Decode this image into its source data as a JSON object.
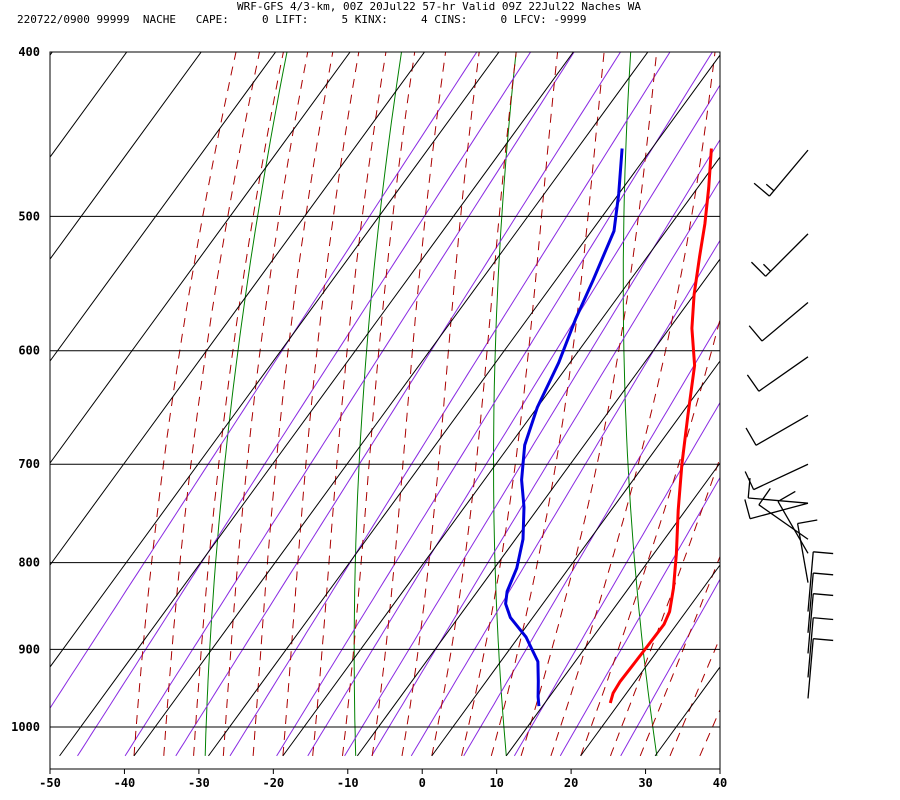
{
  "header": {
    "title": "WRF-GFS 4/3-km, 00Z 20Jul22 57-hr Valid 09Z 22Jul22 Naches WA",
    "stats": "220722/0900 99999  NACHE   CAPE:     0 LIFT:     5 KINX:     4 CINS:     0 LFCV: -9999"
  },
  "colors": {
    "temperature": "#ff0000",
    "dewpoint": "#0000dd",
    "isotherm": "#000000",
    "dry_adiabat": "#008000",
    "moist_adiabat": "#aa0000",
    "mixing_ratio": "#8a2be2",
    "wind_barb": "#000000"
  },
  "chart_data": {
    "type": "skew-t",
    "xlim": [
      -50,
      40
    ],
    "ylim": [
      1040,
      400
    ],
    "y_scale": "log",
    "x_ticks": [
      -50,
      -40,
      -30,
      -20,
      -10,
      0,
      10,
      20,
      30,
      40
    ],
    "y_ticks": [
      400,
      500,
      600,
      700,
      800,
      900,
      1000
    ],
    "grid": true,
    "series": [
      {
        "key": "temperature",
        "points": [
          [
            -22,
            456
          ],
          [
            -18.5,
            481
          ],
          [
            -15.5,
            505
          ],
          [
            -13,
            528
          ],
          [
            -10,
            556
          ],
          [
            -7,
            582
          ],
          [
            -3,
            612
          ],
          [
            1,
            655
          ],
          [
            5,
            700
          ],
          [
            9,
            745
          ],
          [
            13,
            790
          ],
          [
            16,
            828
          ],
          [
            17.8,
            855
          ],
          [
            18.3,
            870
          ],
          [
            18.2,
            900
          ],
          [
            18,
            940
          ],
          [
            18.2,
            955
          ],
          [
            18.8,
            968
          ]
        ]
      },
      {
        "key": "dewpoint",
        "points": [
          [
            -34,
            456
          ],
          [
            -30,
            485
          ],
          [
            -27,
            510
          ],
          [
            -25,
            545
          ],
          [
            -23.5,
            575
          ],
          [
            -21.5,
            610
          ],
          [
            -20,
            648
          ],
          [
            -18,
            682
          ],
          [
            -15,
            715
          ],
          [
            -12,
            742
          ],
          [
            -9,
            775
          ],
          [
            -7,
            806
          ],
          [
            -6,
            832
          ],
          [
            -5,
            846
          ],
          [
            -3,
            862
          ],
          [
            1,
            885
          ],
          [
            5,
            915
          ],
          [
            7,
            940
          ],
          [
            8.5,
            960
          ],
          [
            9.5,
            972
          ]
        ]
      }
    ],
    "wind_barbs": [
      {
        "p": 457,
        "speed_kt": 15,
        "dir_deg": 220
      },
      {
        "p": 512,
        "speed_kt": 15,
        "dir_deg": 225
      },
      {
        "p": 562,
        "speed_kt": 10,
        "dir_deg": 230
      },
      {
        "p": 605,
        "speed_kt": 10,
        "dir_deg": 235
      },
      {
        "p": 655,
        "speed_kt": 10,
        "dir_deg": 240
      },
      {
        "p": 700,
        "speed_kt": 10,
        "dir_deg": 245
      },
      {
        "p": 738,
        "speed_kt": 10,
        "dir_deg": 255
      },
      {
        "p": 738,
        "speed_kt": 10,
        "dir_deg": 275
      },
      {
        "p": 775,
        "speed_kt": 10,
        "dir_deg": 305
      },
      {
        "p": 790,
        "speed_kt": 10,
        "dir_deg": 330
      },
      {
        "p": 822,
        "speed_kt": 10,
        "dir_deg": 350
      },
      {
        "p": 855,
        "speed_kt": 10,
        "dir_deg": 5
      },
      {
        "p": 880,
        "speed_kt": 10,
        "dir_deg": 5
      },
      {
        "p": 905,
        "speed_kt": 10,
        "dir_deg": 5
      },
      {
        "p": 935,
        "speed_kt": 10,
        "dir_deg": 5
      },
      {
        "p": 962,
        "speed_kt": 10,
        "dir_deg": 5
      }
    ]
  }
}
